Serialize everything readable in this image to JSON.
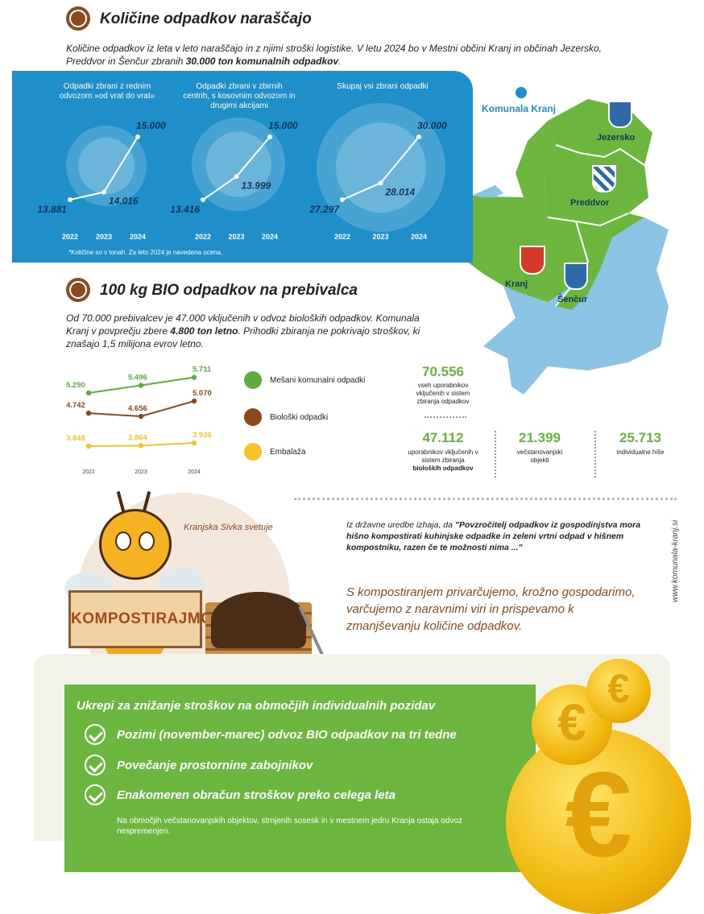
{
  "section1": {
    "title": "Količine odpadkov naraščajo",
    "intro_pre": "Količine odpadkov iz leta v leto naraščajo in z njimi stroški logistike. V letu 2024 bo v Mestni občini Kranj in občinah Jezersko, Preddvor in Šenčur zbranih ",
    "intro_bold": "30.000 ton komunalnih odpadkov",
    "intro_post": "."
  },
  "bluepanel": {
    "note": "*Količine so v tonah. Za leto 2024 je navedena ocena.",
    "charts": [
      {
        "title": "Odpadki zbrani z rednim odvozom »od vrat do vrat«",
        "years": [
          "2022",
          "2023",
          "2024"
        ],
        "labels": [
          "13.881",
          "14.016",
          "15.000"
        ],
        "values": [
          13881,
          14016,
          15000
        ]
      },
      {
        "title": "Odpadki zbrani v zbirnih centrih, s kosovnim odvozom in drugimi akcijami",
        "years": [
          "2022",
          "2023",
          "2024"
        ],
        "labels": [
          "13.416",
          "13.999",
          "15.000"
        ],
        "values": [
          13416,
          13999,
          15000
        ]
      },
      {
        "title": "Skupaj vsi zbrani odpadki",
        "years": [
          "2022",
          "2023",
          "2024"
        ],
        "labels": [
          "27.297",
          "28.014",
          "30.000"
        ],
        "values": [
          27297,
          28014,
          30000
        ]
      }
    ]
  },
  "map": {
    "logo": "Komunala Kranj",
    "labels": {
      "jezersko": "Jezersko",
      "preddvor": "Preddvor",
      "kranj": "Kranj",
      "sencur": "Šenčur"
    }
  },
  "section2": {
    "title": "100 kg BIO odpadkov na prebivalca",
    "intro_pre": "Od 70.000 prebivalcev je 47.000 vključenih v odvoz bioloških odpadkov. Komunala Kranj v povprečju zbere ",
    "intro_bold": "4.800 ton letno",
    "intro_post": ". Prihodki zbiranja ne pokrivajo stroškov, ki znašajo 1,5 milijona evrov letno."
  },
  "chart_data": {
    "type": "line",
    "categories": [
      "2022",
      "2023",
      "2024"
    ],
    "series": [
      {
        "name": "Mešani komunalni odpadki",
        "values": [
          5290,
          5496,
          5711
        ],
        "labels": [
          "5.290",
          "5.496",
          "5.711"
        ],
        "color": "#5cad3c"
      },
      {
        "name": "Biološki odpadki",
        "values": [
          4742,
          4656,
          5070
        ],
        "labels": [
          "4.742",
          "4.656",
          "5.070"
        ],
        "color": "#8a4a1e"
      },
      {
        "name": "Embalaža",
        "values": [
          3848,
          3864,
          3936
        ],
        "labels": [
          "3.848",
          "3.864",
          "3.936"
        ],
        "color": "#f3c32a"
      }
    ]
  },
  "stats": {
    "total": {
      "value": "70.556",
      "text": "vseh uporabnikov vključenih v sistem zbiranja odpadkov"
    },
    "bio": {
      "value": "47.112",
      "text_pre": "uporabnikov vključenih v sistem zbiranja ",
      "text_bold": "bioloških odpadkov"
    },
    "multi": {
      "value": "21.399",
      "text": "večstanovanjski objekti"
    },
    "houses": {
      "value": "25.713",
      "text": "individualne hiše"
    }
  },
  "advice": {
    "sivka": "Kranjska Sivka svetuje",
    "sign": "KOMPOSTIRAJMO",
    "quote_pre": "Iz državne uredbe izhaja, da ",
    "quote_bold": "\"Povzročitelj odpadkov iz gospodinjstva mora hišno kompostirati kuhinjske odpadke in zeleni vrtni odpad v hišnem kompostniku, razen če te možnosti nima ...\"",
    "statement": "S kompostiranjem privarčujemo, krožno gospodarimo, varčujemo z naravnimi viri in prispevamo k zmanjševanju količine odpadkov.",
    "website": "www.komunala-kranj.si"
  },
  "measures": {
    "title": "Ukrepi za znižanje stroškov na območjih individualnih pozidav",
    "items": [
      "Pozimi (november-marec) odvoz BIO odpadkov na tri tedne",
      "Povečanje prostornine zabojnikov",
      "Enakomeren obračun stroškov preko celega leta"
    ],
    "note": "Na območjih večstanovanjskih objektov, strnjenih sosesk in v mestnem jedru Kranja ostaja odvoz nespremenjen."
  },
  "coins": {
    "symbol": "€"
  }
}
